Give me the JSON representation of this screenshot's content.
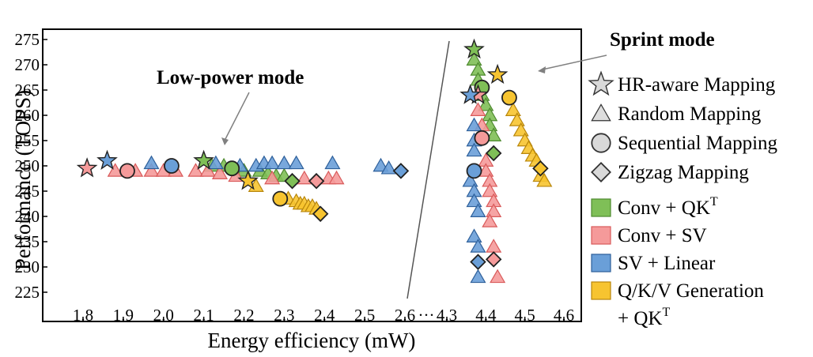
{
  "chart_data": {
    "type": "scatter",
    "xlabel": "Energy efficiency (mW)",
    "ylabel": "Performance (TOPS)",
    "ylim": [
      225,
      275
    ],
    "yticks": [
      225,
      230,
      235,
      240,
      245,
      250,
      255,
      260,
      265,
      270,
      275
    ],
    "x_break": "···",
    "x_segments": [
      {
        "range": [
          1.8,
          2.6
        ],
        "ticks": [
          "1.8",
          "1.9",
          "2.0",
          "2.1",
          "2.2",
          "2.3",
          "2.4",
          "2.5",
          "2.6"
        ]
      },
      {
        "range": [
          4.3,
          4.6
        ],
        "ticks": [
          "4.3",
          "4.4",
          "4.5",
          "4.6"
        ]
      }
    ],
    "annotations": [
      {
        "text": "Low-power mode"
      },
      {
        "text": "Sprint mode"
      }
    ],
    "legend_placement": "right",
    "shape_legend": [
      {
        "shape": "star",
        "label": "HR-aware Mapping"
      },
      {
        "shape": "triangle",
        "label": "Random Mapping"
      },
      {
        "shape": "circle",
        "label": "Sequential Mapping"
      },
      {
        "shape": "diamond",
        "label": "Zigzag Mapping"
      }
    ],
    "series": [
      {
        "key": "green",
        "name": "Conv + QK",
        "sup": "T",
        "line2": "",
        "color": "#7fbf57",
        "stroke": "#4e8a2f",
        "points": [
          {
            "shape": "star",
            "x": 2.1,
            "y": 251
          },
          {
            "shape": "circle",
            "x": 2.17,
            "y": 249.5
          },
          {
            "shape": "diamond",
            "x": 2.32,
            "y": 247
          },
          {
            "shape": "triangle",
            "x": 2.12,
            "y": 250
          },
          {
            "shape": "triangle",
            "x": 2.15,
            "y": 250
          },
          {
            "shape": "triangle",
            "x": 2.2,
            "y": 249
          },
          {
            "shape": "triangle",
            "x": 2.24,
            "y": 249
          },
          {
            "shape": "triangle",
            "x": 2.26,
            "y": 248.5
          },
          {
            "shape": "triangle",
            "x": 2.28,
            "y": 248
          },
          {
            "shape": "triangle",
            "x": 2.3,
            "y": 248
          },
          {
            "shape": "star",
            "x": 4.37,
            "y": 273
          },
          {
            "shape": "circle",
            "x": 4.39,
            "y": 265.5
          },
          {
            "shape": "diamond",
            "x": 4.42,
            "y": 252.5
          },
          {
            "shape": "triangle",
            "x": 4.37,
            "y": 271
          },
          {
            "shape": "triangle",
            "x": 4.38,
            "y": 269
          },
          {
            "shape": "triangle",
            "x": 4.38,
            "y": 267
          },
          {
            "shape": "triangle",
            "x": 4.39,
            "y": 264
          },
          {
            "shape": "triangle",
            "x": 4.4,
            "y": 262
          },
          {
            "shape": "triangle",
            "x": 4.41,
            "y": 260
          },
          {
            "shape": "triangle",
            "x": 4.41,
            "y": 258
          },
          {
            "shape": "triangle",
            "x": 4.42,
            "y": 256
          }
        ]
      },
      {
        "key": "red",
        "name": "Conv + SV",
        "sup": "",
        "line2": "",
        "color": "#f59a9a",
        "stroke": "#d95a5a",
        "points": [
          {
            "shape": "star",
            "x": 1.81,
            "y": 249.5
          },
          {
            "shape": "circle",
            "x": 1.91,
            "y": 249
          },
          {
            "shape": "diamond",
            "x": 2.38,
            "y": 247
          },
          {
            "shape": "triangle",
            "x": 1.88,
            "y": 249
          },
          {
            "shape": "triangle",
            "x": 1.93,
            "y": 249
          },
          {
            "shape": "triangle",
            "x": 1.97,
            "y": 249
          },
          {
            "shape": "triangle",
            "x": 2.0,
            "y": 249
          },
          {
            "shape": "triangle",
            "x": 2.03,
            "y": 249
          },
          {
            "shape": "triangle",
            "x": 2.08,
            "y": 249
          },
          {
            "shape": "triangle",
            "x": 2.11,
            "y": 249
          },
          {
            "shape": "triangle",
            "x": 2.14,
            "y": 248.5
          },
          {
            "shape": "triangle",
            "x": 2.18,
            "y": 248
          },
          {
            "shape": "triangle",
            "x": 2.27,
            "y": 247.5
          },
          {
            "shape": "triangle",
            "x": 2.35,
            "y": 247.5
          },
          {
            "shape": "triangle",
            "x": 2.41,
            "y": 247.5
          },
          {
            "shape": "triangle",
            "x": 2.43,
            "y": 247.5
          },
          {
            "shape": "star",
            "x": 4.38,
            "y": 264
          },
          {
            "shape": "circle",
            "x": 4.39,
            "y": 255.5
          },
          {
            "shape": "diamond",
            "x": 4.42,
            "y": 231.5
          },
          {
            "shape": "triangle",
            "x": 4.38,
            "y": 261
          },
          {
            "shape": "triangle",
            "x": 4.39,
            "y": 258
          },
          {
            "shape": "triangle",
            "x": 4.4,
            "y": 251
          },
          {
            "shape": "triangle",
            "x": 4.4,
            "y": 249
          },
          {
            "shape": "triangle",
            "x": 4.41,
            "y": 247
          },
          {
            "shape": "triangle",
            "x": 4.41,
            "y": 245
          },
          {
            "shape": "triangle",
            "x": 4.42,
            "y": 243
          },
          {
            "shape": "triangle",
            "x": 4.42,
            "y": 241
          },
          {
            "shape": "triangle",
            "x": 4.41,
            "y": 239
          },
          {
            "shape": "triangle",
            "x": 4.42,
            "y": 234
          },
          {
            "shape": "triangle",
            "x": 4.43,
            "y": 228
          }
        ]
      },
      {
        "key": "blue",
        "name": "SV + Linear",
        "sup": "",
        "line2": "",
        "color": "#6a9fd8",
        "stroke": "#2d5f9a",
        "points": [
          {
            "shape": "star",
            "x": 1.86,
            "y": 251
          },
          {
            "shape": "circle",
            "x": 2.02,
            "y": 250
          },
          {
            "shape": "diamond",
            "x": 2.59,
            "y": 249
          },
          {
            "shape": "triangle",
            "x": 1.97,
            "y": 250.5
          },
          {
            "shape": "triangle",
            "x": 2.13,
            "y": 250.5
          },
          {
            "shape": "triangle",
            "x": 2.19,
            "y": 250
          },
          {
            "shape": "triangle",
            "x": 2.23,
            "y": 250
          },
          {
            "shape": "triangle",
            "x": 2.25,
            "y": 250.5
          },
          {
            "shape": "triangle",
            "x": 2.27,
            "y": 250.5
          },
          {
            "shape": "triangle",
            "x": 2.3,
            "y": 250.5
          },
          {
            "shape": "triangle",
            "x": 2.33,
            "y": 250.5
          },
          {
            "shape": "triangle",
            "x": 2.42,
            "y": 250.5
          },
          {
            "shape": "triangle",
            "x": 2.54,
            "y": 250
          },
          {
            "shape": "triangle",
            "x": 2.56,
            "y": 249.5
          },
          {
            "shape": "star",
            "x": 4.36,
            "y": 264
          },
          {
            "shape": "circle",
            "x": 4.37,
            "y": 249
          },
          {
            "shape": "diamond",
            "x": 4.38,
            "y": 231
          },
          {
            "shape": "triangle",
            "x": 4.37,
            "y": 258
          },
          {
            "shape": "triangle",
            "x": 4.37,
            "y": 255
          },
          {
            "shape": "triangle",
            "x": 4.37,
            "y": 253
          },
          {
            "shape": "triangle",
            "x": 4.36,
            "y": 247
          },
          {
            "shape": "triangle",
            "x": 4.37,
            "y": 245
          },
          {
            "shape": "triangle",
            "x": 4.37,
            "y": 243
          },
          {
            "shape": "triangle",
            "x": 4.38,
            "y": 241
          },
          {
            "shape": "triangle",
            "x": 4.37,
            "y": 236
          },
          {
            "shape": "triangle",
            "x": 4.38,
            "y": 234
          },
          {
            "shape": "triangle",
            "x": 4.38,
            "y": 228
          }
        ]
      },
      {
        "key": "yellow",
        "name": "Q/K/V Generation",
        "sup": "T",
        "line2": "+ QK",
        "color": "#f7c430",
        "stroke": "#b8860b",
        "points": [
          {
            "shape": "star",
            "x": 2.21,
            "y": 247
          },
          {
            "shape": "circle",
            "x": 2.29,
            "y": 243.5
          },
          {
            "shape": "diamond",
            "x": 2.39,
            "y": 240.5
          },
          {
            "shape": "triangle",
            "x": 2.23,
            "y": 246
          },
          {
            "shape": "triangle",
            "x": 2.31,
            "y": 243.5
          },
          {
            "shape": "triangle",
            "x": 2.33,
            "y": 243
          },
          {
            "shape": "triangle",
            "x": 2.34,
            "y": 242.5
          },
          {
            "shape": "triangle",
            "x": 2.35,
            "y": 242.5
          },
          {
            "shape": "triangle",
            "x": 2.36,
            "y": 242
          },
          {
            "shape": "triangle",
            "x": 2.37,
            "y": 242
          },
          {
            "shape": "triangle",
            "x": 2.38,
            "y": 241.5
          },
          {
            "shape": "star",
            "x": 4.43,
            "y": 268
          },
          {
            "shape": "circle",
            "x": 4.46,
            "y": 263.5
          },
          {
            "shape": "diamond",
            "x": 4.54,
            "y": 249.5
          },
          {
            "shape": "triangle",
            "x": 4.47,
            "y": 261
          },
          {
            "shape": "triangle",
            "x": 4.48,
            "y": 259
          },
          {
            "shape": "triangle",
            "x": 4.49,
            "y": 257
          },
          {
            "shape": "triangle",
            "x": 4.5,
            "y": 255
          },
          {
            "shape": "triangle",
            "x": 4.51,
            "y": 253.5
          },
          {
            "shape": "triangle",
            "x": 4.52,
            "y": 252
          },
          {
            "shape": "triangle",
            "x": 4.53,
            "y": 251
          },
          {
            "shape": "triangle",
            "x": 4.54,
            "y": 248
          },
          {
            "shape": "triangle",
            "x": 4.55,
            "y": 247
          }
        ]
      }
    ]
  }
}
